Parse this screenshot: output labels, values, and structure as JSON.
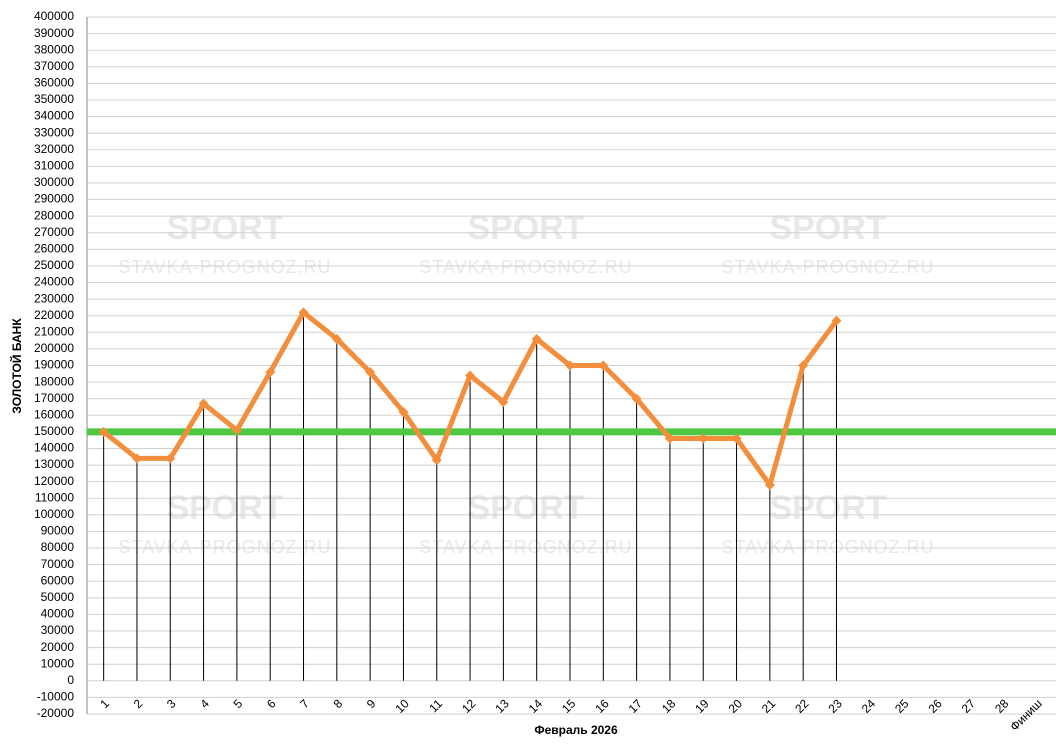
{
  "chart_data": {
    "type": "line",
    "y_label": "ЗОЛОТОЙ БАНК",
    "x_label": "Февраль 2026",
    "watermark": [
      "SPORT",
      "STAVKA-PROGNOZ.RU"
    ],
    "categories": [
      "1",
      "2",
      "3",
      "4",
      "5",
      "6",
      "7",
      "8",
      "9",
      "10",
      "11",
      "12",
      "13",
      "14",
      "15",
      "16",
      "17",
      "18",
      "19",
      "20",
      "21",
      "22",
      "23",
      "24",
      "25",
      "26",
      "27",
      "28",
      "Финиш"
    ],
    "series": [
      {
        "color": "#f28e3c",
        "values": [
          150000,
          134000,
          134000,
          167000,
          151000,
          186000,
          222000,
          206000,
          186000,
          162000,
          133000,
          184000,
          168000,
          206000,
          190000,
          190000,
          170000,
          146000,
          146000,
          146000,
          118000,
          190000,
          217000,
          null,
          null,
          null,
          null,
          null,
          null
        ]
      }
    ],
    "reference_line": {
      "value": 150000,
      "color": "#4ec842"
    },
    "drop_lines": true,
    "grid": true,
    "ylim": [
      -20000,
      400000
    ],
    "yticks": [
      -20000,
      -10000,
      0,
      10000,
      20000,
      30000,
      40000,
      50000,
      60000,
      70000,
      80000,
      90000,
      100000,
      110000,
      120000,
      130000,
      140000,
      150000,
      160000,
      170000,
      180000,
      190000,
      200000,
      210000,
      220000,
      230000,
      240000,
      250000,
      260000,
      270000,
      280000,
      290000,
      300000,
      310000,
      320000,
      330000,
      340000,
      350000,
      360000,
      370000,
      380000,
      390000,
      400000
    ]
  }
}
